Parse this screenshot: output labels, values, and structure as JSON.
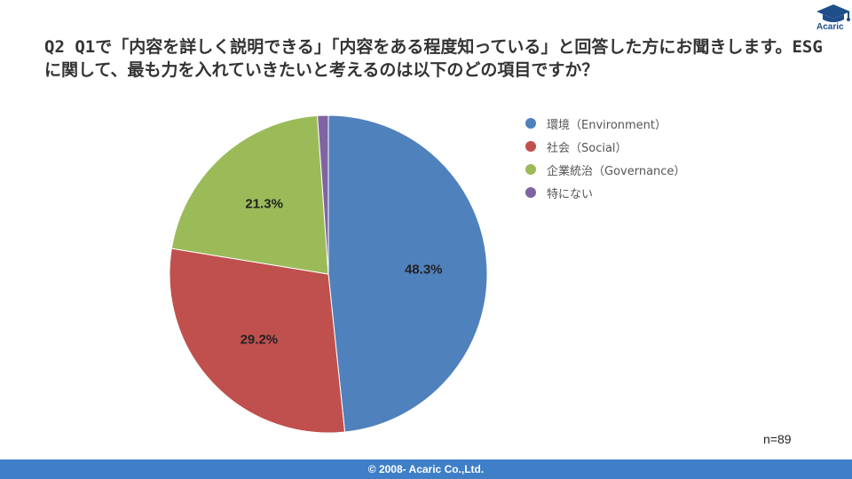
{
  "header": {
    "title": "Q2 Q1で「内容を詳しく説明できる」「内容をある程度知っている」と回答した方にお聞きします。ESGに関して、最も力を入れていきたいと考えるのは以下のどの項目ですか？",
    "logo_text": "Acaric"
  },
  "chart_data": {
    "type": "pie",
    "title": "",
    "slices": [
      {
        "label": "環境（Environment）",
        "value": 48.3,
        "display": "48.3%",
        "color": "#4f81bd"
      },
      {
        "label": "社会（Social）",
        "value": 29.2,
        "display": "29.2%",
        "color": "#c0504d"
      },
      {
        "label": "企業統治（Governance）",
        "value": 21.3,
        "display": "21.3%",
        "color": "#9bbb59"
      },
      {
        "label": "特にない",
        "value": 1.1,
        "display": "",
        "color": "#8064a2"
      }
    ],
    "start": "12 o'clock",
    "direction": "clockwise",
    "legend_position": "right",
    "note": "n=89"
  },
  "footer": {
    "copyright": "© 2008- Acaric Co.,Ltd."
  }
}
